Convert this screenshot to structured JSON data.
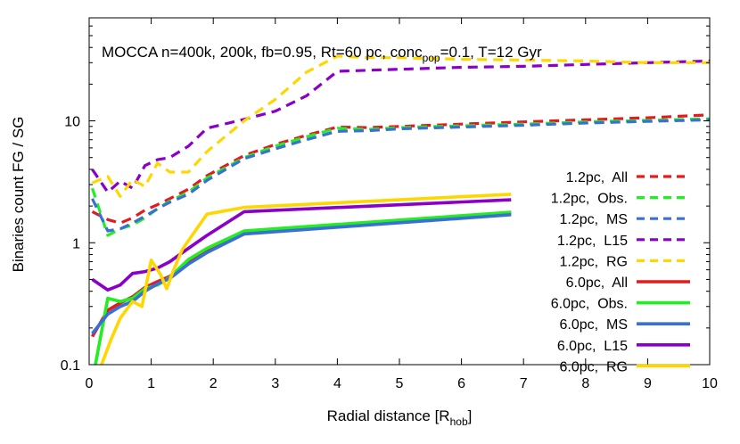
{
  "chart_data": {
    "type": "line",
    "title_parts": {
      "main": "MOCCA n=400k, 200k, fb=0.95, Rt=60 pc, conc",
      "sub": "pop",
      "tail": "=0.1, T=12 Gyr"
    },
    "xlabel": {
      "main": "Radial distance [R",
      "sub": "hob",
      "tail": "]"
    },
    "ylabel": "Binaries count FG / SG",
    "xlim": [
      0,
      10
    ],
    "ylim": [
      0.1,
      70
    ],
    "y_scale": "log",
    "x_ticks": [
      0,
      1,
      2,
      3,
      4,
      5,
      6,
      7,
      8,
      9,
      10
    ],
    "x_tick_labels": [
      "0",
      "1",
      "2",
      "3",
      "4",
      "5",
      "6",
      "7",
      "8",
      "9",
      "10"
    ],
    "y_ticks": [
      0.1,
      1,
      10
    ],
    "y_tick_labels": [
      "0.1",
      "1",
      "10"
    ],
    "grid": false,
    "legend_position": "right",
    "series": [
      {
        "name": "1.2pc,  All",
        "color": "#e41a1c",
        "dashed": true,
        "x": [
          0.05,
          0.3,
          0.5,
          0.7,
          0.9,
          1.1,
          1.3,
          1.6,
          1.9,
          2.5,
          3.0,
          3.5,
          4.0,
          4.5,
          5.0,
          6.0,
          7.0,
          8.0,
          9.0,
          10.0
        ],
        "y": [
          1.8,
          1.55,
          1.45,
          1.6,
          1.85,
          2.05,
          2.3,
          2.75,
          3.55,
          5.2,
          6.4,
          7.6,
          8.9,
          8.8,
          9.0,
          9.4,
          9.8,
          10.2,
          10.6,
          11.2
        ]
      },
      {
        "name": "1.2pc,  Obs.",
        "color": "#22ee22",
        "dashed": true,
        "x": [
          0.05,
          0.3,
          0.5,
          0.7,
          0.9,
          1.1,
          1.3,
          1.6,
          1.9,
          2.5,
          3.0,
          3.5,
          4.0,
          4.5,
          5.0,
          6.0,
          7.0,
          8.0,
          9.0,
          10.0
        ],
        "y": [
          2.8,
          1.15,
          1.3,
          1.4,
          1.6,
          1.9,
          2.2,
          2.6,
          3.4,
          5.0,
          6.2,
          7.4,
          8.7,
          8.5,
          8.8,
          9.1,
          9.4,
          9.8,
          10.1,
          10.4
        ]
      },
      {
        "name": "1.2pc,  MS",
        "color": "#3a6fd8",
        "dashed": true,
        "x": [
          0.05,
          0.3,
          0.5,
          0.7,
          0.9,
          1.1,
          1.3,
          1.6,
          1.9,
          2.5,
          3.0,
          3.5,
          4.0,
          4.5,
          5.0,
          6.0,
          7.0,
          8.0,
          9.0,
          10.0
        ],
        "y": [
          2.3,
          1.25,
          1.3,
          1.45,
          1.65,
          1.9,
          2.15,
          2.5,
          3.25,
          4.9,
          5.9,
          7.0,
          8.2,
          8.3,
          8.6,
          8.9,
          9.2,
          9.6,
          9.9,
          10.2
        ]
      },
      {
        "name": "1.2pc,  L15",
        "color": "#8b00c9",
        "dashed": true,
        "x": [
          0.05,
          0.3,
          0.5,
          0.7,
          0.9,
          1.1,
          1.3,
          1.6,
          1.9,
          2.5,
          3.0,
          3.5,
          4.0,
          4.5,
          5.0,
          6.0,
          7.0,
          8.0,
          9.0,
          10.0
        ],
        "y": [
          4.0,
          2.6,
          3.2,
          2.8,
          4.3,
          4.8,
          5.0,
          6.2,
          8.7,
          10.3,
          12.0,
          16.0,
          25.5,
          26.0,
          26.5,
          27.5,
          28.0,
          29.0,
          30.0,
          31.0
        ]
      },
      {
        "name": "1.2pc,  RG",
        "color": "#ffd700",
        "dashed": true,
        "x": [
          0.05,
          0.3,
          0.5,
          0.7,
          0.9,
          1.1,
          1.3,
          1.6,
          1.9,
          2.5,
          3.0,
          3.5,
          4.0,
          4.5,
          5.0,
          6.0,
          7.0,
          8.0,
          9.0,
          10.0
        ],
        "y": [
          3.1,
          3.5,
          2.4,
          3.3,
          2.9,
          4.5,
          3.8,
          3.8,
          5.6,
          10.0,
          15.0,
          25.0,
          34.0,
          33.0,
          33.0,
          32.0,
          31.5,
          31.0,
          30.0,
          30.0
        ]
      },
      {
        "name": "6.0pc,  All",
        "color": "#e41a1c",
        "dashed": false,
        "x": [
          0.05,
          0.3,
          0.5,
          0.7,
          0.9,
          1.1,
          1.3,
          1.6,
          1.9,
          2.5,
          6.8
        ],
        "y": [
          0.17,
          0.28,
          0.32,
          0.36,
          0.43,
          0.48,
          0.53,
          0.7,
          0.87,
          1.22,
          1.75
        ]
      },
      {
        "name": "6.0pc,  Obs.",
        "color": "#22ee22",
        "dashed": false,
        "x": [
          0.1,
          0.3,
          0.5,
          0.7,
          0.9,
          1.1,
          1.3,
          1.6,
          1.9,
          2.5,
          6.8
        ],
        "y": [
          0.1,
          0.35,
          0.33,
          0.35,
          0.42,
          0.45,
          0.52,
          0.73,
          0.9,
          1.25,
          1.78
        ]
      },
      {
        "name": "6.0pc,  MS",
        "color": "#3a6fd8",
        "dashed": false,
        "x": [
          0.05,
          0.3,
          0.5,
          0.7,
          0.9,
          1.1,
          1.3,
          1.6,
          1.9,
          2.5,
          6.8
        ],
        "y": [
          0.18,
          0.26,
          0.3,
          0.33,
          0.4,
          0.46,
          0.51,
          0.67,
          0.83,
          1.18,
          1.7
        ]
      },
      {
        "name": "6.0pc,  L15",
        "color": "#8b00c9",
        "dashed": false,
        "x": [
          0.05,
          0.3,
          0.5,
          0.7,
          0.9,
          1.1,
          1.3,
          1.6,
          1.9,
          2.5,
          6.8
        ],
        "y": [
          0.5,
          0.41,
          0.45,
          0.56,
          0.58,
          0.62,
          0.7,
          0.9,
          1.15,
          1.8,
          2.25
        ]
      },
      {
        "name": "6.0pc,  RG",
        "color": "#ffd700",
        "dashed": false,
        "x": [
          0.2,
          0.35,
          0.5,
          0.7,
          0.85,
          1.0,
          1.15,
          1.25,
          1.35,
          1.5,
          1.9,
          2.5,
          6.8
        ],
        "y": [
          0.1,
          0.16,
          0.24,
          0.33,
          0.3,
          0.72,
          0.55,
          0.42,
          0.58,
          0.88,
          1.72,
          1.95,
          2.5
        ]
      }
    ]
  }
}
